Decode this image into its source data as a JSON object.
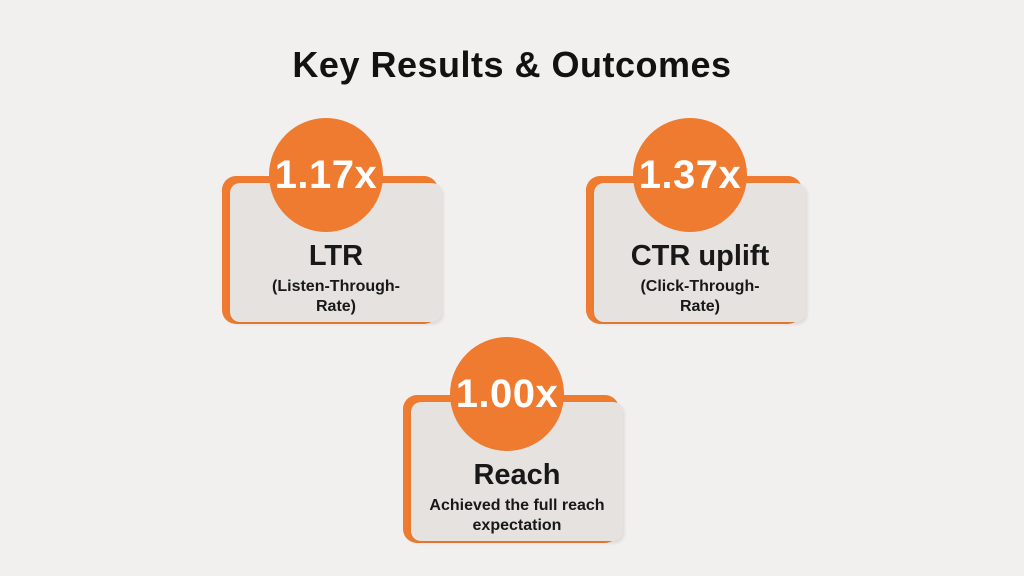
{
  "slide": {
    "title": "Key Results & Outcomes",
    "background_color": "#f1f0ef",
    "accent_color": "#ee7b2f",
    "panel_color": "#e5e2df",
    "text_color": "#181818",
    "value_text_color": "#ffffff"
  },
  "cards": [
    {
      "value": "1.17x",
      "label": "LTR",
      "sublabel": "(Listen-Through-\nRate)"
    },
    {
      "value": "1.37x",
      "label": "CTR uplift",
      "sublabel": "(Click-Through-\nRate)"
    },
    {
      "value": "1.00x",
      "label": "Reach",
      "sublabel": "Achieved the full reach\nexpectation"
    }
  ]
}
